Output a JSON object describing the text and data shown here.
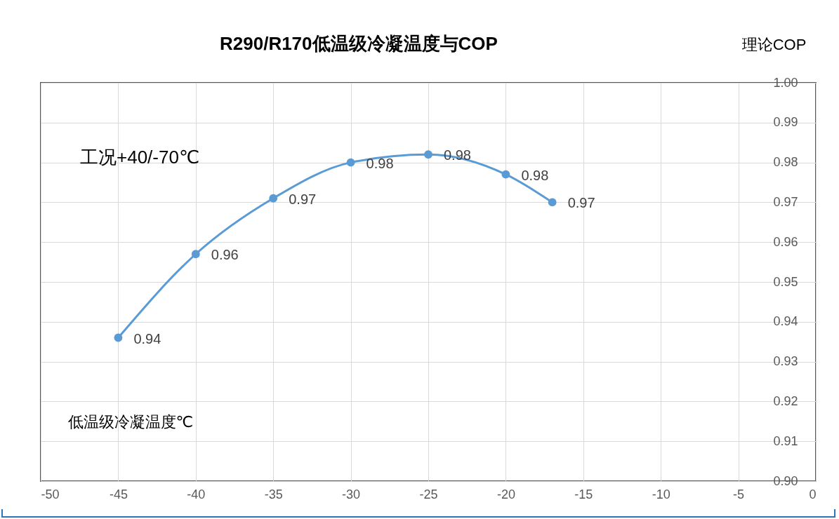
{
  "chart_data": {
    "type": "line",
    "title": "R290/R170低温级冷凝温度与COP",
    "xlabel": "低温级冷凝温度℃",
    "ylabel": "理论COP",
    "annotations": [
      "工况+40/-70℃"
    ],
    "x": [
      -45,
      -40,
      -35,
      -30,
      -25,
      -20,
      -17
    ],
    "series": [
      {
        "color": "#5b9bd5",
        "values": [
          0.936,
          0.957,
          0.971,
          0.98,
          0.982,
          0.977,
          0.97
        ],
        "value_labels": [
          "0.94",
          "0.96",
          "0.97",
          "0.98",
          "0.98",
          "0.98",
          "0.97"
        ]
      }
    ],
    "xlim": [
      -50,
      0
    ],
    "xticks": [
      -50,
      -45,
      -40,
      -35,
      -30,
      -25,
      -20,
      -15,
      -10,
      -5,
      0
    ],
    "ylim": [
      0.9,
      1.0
    ],
    "yticks": [
      {
        "value": 0.9,
        "label": "0.90"
      },
      0.91,
      0.92,
      0.93,
      0.94,
      0.95,
      0.96,
      0.97,
      0.98,
      0.99,
      {
        "value": 1.0,
        "label": "1.00"
      }
    ],
    "grid": true,
    "marker": "circle",
    "line_style": "solid"
  }
}
